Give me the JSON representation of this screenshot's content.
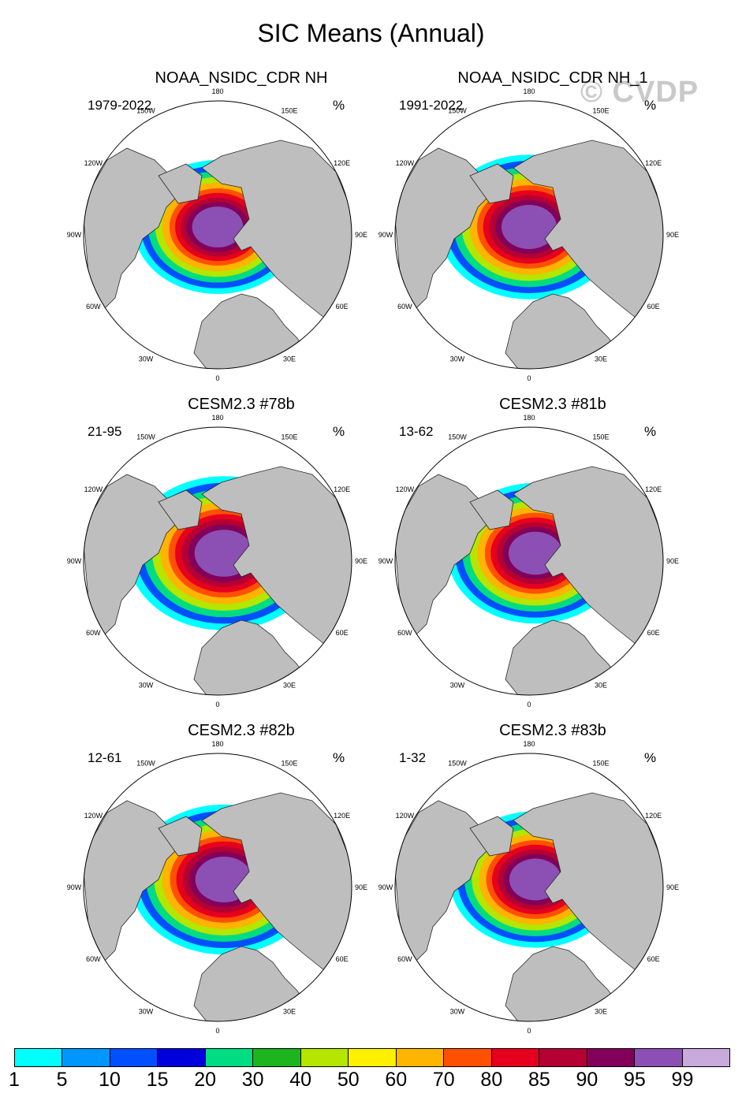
{
  "figure": {
    "title": "SIC Means (Annual)",
    "watermark": "© CVDP"
  },
  "map_style": {
    "land_color": "#bebebe",
    "ocean_color": "#ffffff",
    "coast_color": "#2a2a2a",
    "projection": "polar stereographic (North Pole)",
    "longitude_labels": [
      "180",
      "150E",
      "120E",
      "90E",
      "60E",
      "30E",
      "0",
      "30W",
      "60W",
      "90W",
      "120W",
      "150W"
    ]
  },
  "panels": [
    {
      "title": "NOAA_NSIDC_CDR NH",
      "period": "1979-2022",
      "units": "%"
    },
    {
      "title": "NOAA_NSIDC_CDR NH_1",
      "period": "1991-2022",
      "units": "%"
    },
    {
      "title": "CESM2.3 #78b",
      "period": "21-95",
      "units": "%"
    },
    {
      "title": "CESM2.3 #81b",
      "period": "13-62",
      "units": "%"
    },
    {
      "title": "CESM2.3 #82b",
      "period": "12-61",
      "units": "%"
    },
    {
      "title": "CESM2.3 #83b",
      "period": "1-32",
      "units": "%"
    }
  ],
  "colorbar": {
    "labels": [
      "1",
      "5",
      "10",
      "15",
      "20",
      "30",
      "40",
      "50",
      "60",
      "70",
      "80",
      "85",
      "90",
      "95",
      "99"
    ],
    "colors": [
      "#00ffff",
      "#0096ff",
      "#0050ff",
      "#0000dc",
      "#00dc82",
      "#1eb41e",
      "#b4e600",
      "#fff000",
      "#ffb400",
      "#ff5000",
      "#e6001e",
      "#b40032",
      "#82005a",
      "#8c50b4",
      "#c8aadc"
    ]
  }
}
